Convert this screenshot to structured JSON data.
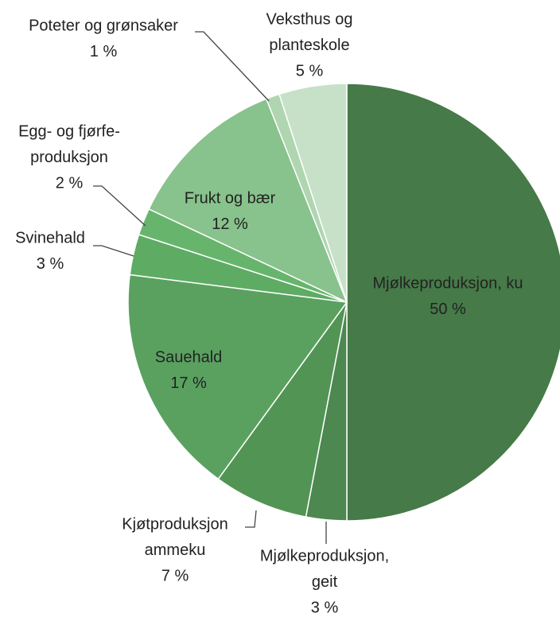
{
  "chart_data": {
    "type": "pie",
    "categories": [
      [
        "Mjølkeproduksjon, ku"
      ],
      [
        "Mjølkeproduksjon,",
        "geit"
      ],
      [
        "Kjøtproduksjon",
        "ammeku"
      ],
      [
        "Sauehald"
      ],
      [
        "Svinehald"
      ],
      [
        "Egg- og fjørfe-",
        "produksjon"
      ],
      [
        "Frukt og bær"
      ],
      [
        "Poteter og grønsaker"
      ],
      [
        "Veksthus og",
        "planteskole"
      ]
    ],
    "values": [
      50,
      3,
      7,
      17,
      3,
      2,
      12,
      1,
      5
    ],
    "value_labels": [
      "50 %",
      "3 %",
      "7 %",
      "17 %",
      "3 %",
      "2 %",
      "12 %",
      "1 %",
      "5 %"
    ],
    "colors": [
      "#467a48",
      "#4c8850",
      "#529454",
      "#5aa160",
      "#5eab64",
      "#67b56d",
      "#88c28c",
      "#afd5b1",
      "#c6e1c7"
    ]
  }
}
